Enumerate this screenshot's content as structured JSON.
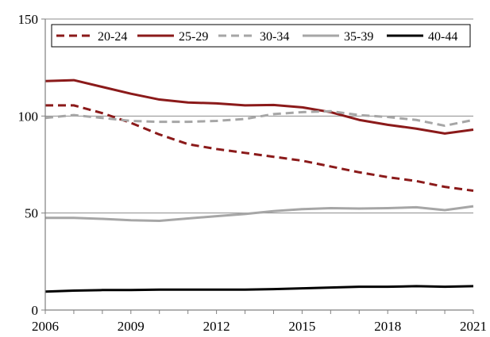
{
  "chart_data": {
    "type": "line",
    "title": "",
    "xlabel": "",
    "ylabel": "",
    "x": [
      2006,
      2007,
      2008,
      2009,
      2010,
      2011,
      2012,
      2013,
      2014,
      2015,
      2016,
      2017,
      2018,
      2019,
      2020,
      2021
    ],
    "xlim": [
      2006,
      2021
    ],
    "ylim": [
      0,
      150
    ],
    "xticks": [
      "2006",
      "2009",
      "2012",
      "2015",
      "2018",
      "2021"
    ],
    "xtick_values": [
      2006,
      2009,
      2012,
      2015,
      2018,
      2021
    ],
    "yticks": [
      "0",
      "50",
      "100",
      "150"
    ],
    "ytick_values": [
      0,
      50,
      100,
      150
    ],
    "grid": "horizontal",
    "legend_position": "top",
    "series": [
      {
        "name": "20-24",
        "color": "#8b1a1a",
        "dash": "dashed",
        "values": [
          105.5,
          105.5,
          101.5,
          96.5,
          90.5,
          85.5,
          83,
          81,
          79,
          77,
          74,
          71,
          68.5,
          66.5,
          63.5,
          61.5
        ]
      },
      {
        "name": "25-29",
        "color": "#8b1a1a",
        "dash": "solid",
        "values": [
          118,
          118.5,
          115,
          111.5,
          108.5,
          107,
          106.5,
          105.5,
          105.7,
          104.5,
          102,
          98,
          95.5,
          93.5,
          91,
          93
        ]
      },
      {
        "name": "30-34",
        "color": "#a6a6a6",
        "dash": "dashed",
        "values": [
          99,
          100.5,
          99,
          97.5,
          97,
          97,
          97.5,
          98.5,
          101,
          102,
          102.5,
          100.5,
          99.5,
          98,
          95,
          98
        ]
      },
      {
        "name": "35-39",
        "color": "#a6a6a6",
        "dash": "solid",
        "values": [
          47.5,
          47.5,
          47,
          46.3,
          46,
          47.2,
          48.4,
          49.5,
          51,
          52,
          52.5,
          52.3,
          52.5,
          53,
          51.5,
          53.5
        ]
      },
      {
        "name": "40-44",
        "color": "#000000",
        "dash": "solid",
        "values": [
          9.5,
          10,
          10.3,
          10.3,
          10.5,
          10.5,
          10.5,
          10.5,
          10.8,
          11.2,
          11.6,
          12,
          12,
          12.3,
          12,
          12.3
        ]
      }
    ]
  }
}
